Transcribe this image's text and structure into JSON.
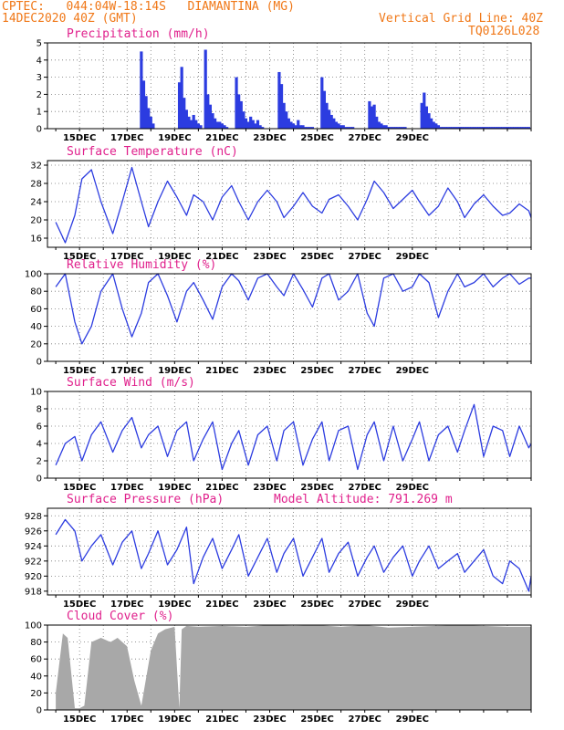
{
  "header": {
    "line1_left": "CPTEC:   044:04W-18:14S   DIAMANTINA (MG)",
    "line2_left": "14DEC2020 40Z (GMT)",
    "line1_right": "Vertical Grid Line: 40Z",
    "line2_right": "TQ0126L028"
  },
  "colors": {
    "line": "#2c3ce0",
    "title": "#e0208c",
    "header": "#f07818",
    "cloud": "#a8a8a8"
  },
  "x_labels": [
    "15DEC",
    "17DEC",
    "19DEC",
    "21DEC",
    "23DEC",
    "25DEC",
    "27DEC",
    "29DEC"
  ],
  "chart_data": [
    {
      "type": "bar",
      "title": "Precipitation (mm/h)",
      "ylim": [
        0,
        5
      ],
      "yticks": [
        0,
        1,
        2,
        3,
        4,
        5
      ],
      "x": [
        3.6,
        3.7,
        3.8,
        3.9,
        4.0,
        4.1,
        5.2,
        5.3,
        5.4,
        5.5,
        5.6,
        5.7,
        5.8,
        5.9,
        6.0,
        6.1,
        6.3,
        6.4,
        6.5,
        6.6,
        6.7,
        6.8,
        6.9,
        7.0,
        7.1,
        7.2,
        7.6,
        7.7,
        7.8,
        7.9,
        8.0,
        8.1,
        8.2,
        8.3,
        8.4,
        8.5,
        8.6,
        8.7,
        9.4,
        9.5,
        9.6,
        9.7,
        9.8,
        9.9,
        10.0,
        10.1,
        10.2,
        10.3,
        10.4,
        10.5,
        10.6,
        10.7,
        10.8,
        11.2,
        11.3,
        11.4,
        11.5,
        11.6,
        11.7,
        11.8,
        11.9,
        12.0,
        12.1,
        12.2,
        12.3,
        12.4,
        12.5,
        13.2,
        13.3,
        13.4,
        13.5,
        13.6,
        13.7,
        13.8,
        13.9,
        14.0,
        14.1,
        14.2,
        14.3,
        14.4,
        14.5,
        14.6,
        14.7,
        15.4,
        15.5,
        15.6,
        15.7,
        15.8,
        15.9,
        16.0,
        16.1,
        16.2,
        16.3,
        16.4,
        16.5,
        16.6,
        16.7,
        16.8,
        16.9,
        17.0,
        17.1,
        17.2,
        17.3,
        17.4,
        17.5,
        17.6,
        17.7,
        17.8,
        17.9,
        18.0,
        18.1,
        18.2,
        18.3,
        18.4,
        18.5,
        18.6,
        18.7,
        18.8,
        18.9,
        19.0,
        19.1,
        19.2,
        19.3,
        19.4,
        19.5,
        19.6,
        19.7,
        19.8,
        19.9
      ],
      "values": [
        4.5,
        2.8,
        1.9,
        1.2,
        0.7,
        0.3,
        2.7,
        3.6,
        1.8,
        1.1,
        0.7,
        0.5,
        0.8,
        0.5,
        0.3,
        0.2,
        4.6,
        2.0,
        1.4,
        0.9,
        0.6,
        0.4,
        0.4,
        0.3,
        0.2,
        0.1,
        3.0,
        2.0,
        1.6,
        1.0,
        0.6,
        0.4,
        0.7,
        0.5,
        0.3,
        0.5,
        0.2,
        0.1,
        3.3,
        2.6,
        1.5,
        1.0,
        0.6,
        0.4,
        0.3,
        0.2,
        0.5,
        0.2,
        0.2,
        0.1,
        0.1,
        0.1,
        0.1,
        3.0,
        2.2,
        1.5,
        1.1,
        0.8,
        0.6,
        0.4,
        0.3,
        0.2,
        0.2,
        0.1,
        0.1,
        0.1,
        0.1,
        1.6,
        1.3,
        1.4,
        0.7,
        0.4,
        0.3,
        0.2,
        0.2,
        0.1,
        0.1,
        0.1,
        0.1,
        0.1,
        0.1,
        0.1,
        0.1,
        1.5,
        2.1,
        1.3,
        0.9,
        0.6,
        0.4,
        0.3,
        0.2,
        0.1,
        0.1,
        0.1,
        0.1,
        0.1,
        0.1,
        0.1,
        0.1,
        0.1,
        0.1,
        0.1,
        0.1,
        0.1,
        0.1,
        0.1,
        0.1,
        0.1,
        0.1,
        0.1,
        0.1,
        0.1,
        0.1,
        0.1,
        0.1,
        0.1,
        0.1,
        0.1,
        0.1,
        0.1,
        0.1,
        0.1,
        0.1,
        0.1,
        0.1,
        0.1,
        0.1,
        0.1,
        0.1
      ]
    },
    {
      "type": "line",
      "title": "Surface Temperature (nC)",
      "ylim": [
        14,
        33
      ],
      "yticks": [
        16,
        20,
        24,
        28,
        32
      ],
      "x": [
        0,
        0.4,
        0.8,
        1.1,
        1.5,
        1.9,
        2.4,
        2.8,
        3.2,
        3.6,
        3.9,
        4.3,
        4.7,
        5.1,
        5.5,
        5.8,
        6.2,
        6.6,
        7.0,
        7.4,
        7.7,
        8.1,
        8.5,
        8.9,
        9.3,
        9.6,
        10.0,
        10.4,
        10.8,
        11.2,
        11.5,
        11.9,
        12.3,
        12.7,
        13.1,
        13.4,
        13.8,
        14.2,
        14.6,
        15.0,
        15.3,
        15.7,
        16.1,
        16.5,
        16.9,
        17.2,
        17.6,
        18.0,
        18.4,
        18.8,
        19.1,
        19.5,
        19.9,
        20.0
      ],
      "values": [
        19.5,
        15.0,
        21.0,
        29.0,
        31.0,
        24.0,
        17.0,
        24.0,
        31.5,
        24.0,
        18.5,
        24.0,
        28.5,
        25.0,
        21.0,
        25.5,
        24.0,
        20.0,
        25.0,
        27.5,
        24.0,
        20.0,
        24.0,
        26.5,
        24.0,
        20.5,
        23.0,
        26.0,
        23.0,
        21.5,
        24.5,
        25.5,
        23.0,
        20.0,
        24.5,
        28.5,
        26.0,
        22.5,
        24.5,
        26.5,
        24.0,
        21.0,
        23.0,
        27.0,
        24.0,
        20.5,
        23.5,
        25.5,
        23.0,
        21.0,
        21.5,
        23.5,
        22.0,
        20.5
      ]
    },
    {
      "type": "line",
      "title": "Relative Humidity (%)",
      "ylim": [
        0,
        100
      ],
      "yticks": [
        0,
        20,
        40,
        60,
        80,
        100
      ],
      "x": [
        0,
        0.4,
        0.8,
        1.1,
        1.5,
        1.9,
        2.4,
        2.8,
        3.2,
        3.6,
        3.9,
        4.3,
        4.7,
        5.1,
        5.5,
        5.8,
        6.2,
        6.6,
        7.0,
        7.4,
        7.7,
        8.1,
        8.5,
        8.9,
        9.3,
        9.6,
        10.0,
        10.4,
        10.8,
        11.2,
        11.5,
        11.9,
        12.3,
        12.7,
        13.1,
        13.4,
        13.8,
        14.2,
        14.6,
        15.0,
        15.3,
        15.7,
        16.1,
        16.5,
        16.9,
        17.2,
        17.6,
        18.0,
        18.4,
        18.8,
        19.1,
        19.5,
        19.9,
        20.0
      ],
      "values": [
        85,
        100,
        45,
        20,
        40,
        80,
        100,
        60,
        28,
        55,
        90,
        100,
        75,
        45,
        80,
        90,
        70,
        48,
        85,
        100,
        92,
        70,
        95,
        100,
        85,
        75,
        100,
        82,
        62,
        95,
        100,
        70,
        80,
        100,
        55,
        40,
        95,
        100,
        80,
        85,
        100,
        90,
        50,
        80,
        100,
        85,
        90,
        100,
        85,
        95,
        100,
        88,
        95,
        95
      ]
    },
    {
      "type": "line",
      "title": "Surface Wind (m/s)",
      "ylim": [
        0,
        10
      ],
      "yticks": [
        0,
        2,
        4,
        6,
        8,
        10
      ],
      "x": [
        0,
        0.4,
        0.8,
        1.1,
        1.5,
        1.9,
        2.4,
        2.8,
        3.2,
        3.6,
        3.9,
        4.3,
        4.7,
        5.1,
        5.5,
        5.8,
        6.2,
        6.6,
        7.0,
        7.4,
        7.7,
        8.1,
        8.5,
        8.9,
        9.3,
        9.6,
        10.0,
        10.4,
        10.8,
        11.2,
        11.5,
        11.9,
        12.3,
        12.7,
        13.1,
        13.4,
        13.8,
        14.2,
        14.6,
        15.0,
        15.3,
        15.7,
        16.1,
        16.5,
        16.9,
        17.2,
        17.6,
        18.0,
        18.4,
        18.8,
        19.1,
        19.5,
        19.9,
        20.0
      ],
      "values": [
        1.5,
        4.0,
        4.8,
        2.0,
        5.0,
        6.5,
        3.0,
        5.5,
        7.0,
        3.5,
        5.0,
        6.0,
        2.5,
        5.5,
        6.5,
        2.0,
        4.5,
        6.5,
        1.0,
        4.0,
        5.5,
        1.5,
        5.0,
        6.0,
        2.0,
        5.5,
        6.5,
        1.5,
        4.5,
        6.5,
        2.0,
        5.5,
        6.0,
        1.0,
        5.0,
        6.5,
        2.0,
        6.0,
        2.0,
        4.5,
        6.5,
        2.0,
        5.0,
        6.0,
        3.0,
        5.5,
        8.5,
        2.5,
        6.0,
        5.5,
        2.5,
        6.0,
        3.5,
        4.0
      ]
    },
    {
      "type": "line",
      "title": "Surface Pressure (hPa)",
      "subtitle": "Model Altitude: 791.269 m",
      "ylim": [
        917.5,
        929
      ],
      "yticks": [
        918,
        920,
        922,
        924,
        926,
        928
      ],
      "x": [
        0,
        0.4,
        0.8,
        1.1,
        1.5,
        1.9,
        2.4,
        2.8,
        3.2,
        3.6,
        3.9,
        4.3,
        4.7,
        5.1,
        5.5,
        5.8,
        6.2,
        6.6,
        7.0,
        7.4,
        7.7,
        8.1,
        8.5,
        8.9,
        9.3,
        9.6,
        10.0,
        10.4,
        10.8,
        11.2,
        11.5,
        11.9,
        12.3,
        12.7,
        13.1,
        13.4,
        13.8,
        14.2,
        14.6,
        15.0,
        15.3,
        15.7,
        16.1,
        16.5,
        16.9,
        17.2,
        17.6,
        18.0,
        18.4,
        18.8,
        19.1,
        19.5,
        19.9,
        20.0
      ],
      "values": [
        925.5,
        927.5,
        926.0,
        922.0,
        924.0,
        925.5,
        921.5,
        924.5,
        926.0,
        921.0,
        923.0,
        926.0,
        921.5,
        923.5,
        926.5,
        919.0,
        922.5,
        925.0,
        921.0,
        923.5,
        925.5,
        920.0,
        922.5,
        925.0,
        920.5,
        923.0,
        925.0,
        920.0,
        922.5,
        925.0,
        920.5,
        923.0,
        924.5,
        920.0,
        922.5,
        924.0,
        920.5,
        922.5,
        924.0,
        920.0,
        922.0,
        924.0,
        921.0,
        922.0,
        923.0,
        920.5,
        922.0,
        923.5,
        920.0,
        919.0,
        922.0,
        921.0,
        918.0,
        920.0
      ]
    },
    {
      "type": "area",
      "title": "Cloud Cover (%)",
      "ylim": [
        0,
        100
      ],
      "yticks": [
        0,
        20,
        40,
        60,
        80,
        100
      ],
      "x": [
        0,
        0.3,
        0.5,
        0.8,
        1.0,
        1.2,
        1.5,
        1.9,
        2.3,
        2.6,
        3.0,
        3.3,
        3.6,
        4.0,
        4.3,
        4.6,
        5.0,
        5.2,
        5.3,
        5.5,
        6.0,
        7.0,
        8.0,
        9.0,
        10.0,
        11.0,
        12.0,
        13.0,
        14.0,
        15.0,
        16.0,
        17.0,
        18.0,
        19.0,
        20.0
      ],
      "values": [
        20,
        90,
        85,
        2,
        2,
        5,
        80,
        85,
        80,
        85,
        75,
        35,
        5,
        70,
        90,
        95,
        98,
        2,
        95,
        99,
        98,
        99,
        98,
        100,
        99,
        100,
        98,
        100,
        97,
        98,
        99,
        100,
        99,
        98,
        98
      ]
    }
  ]
}
